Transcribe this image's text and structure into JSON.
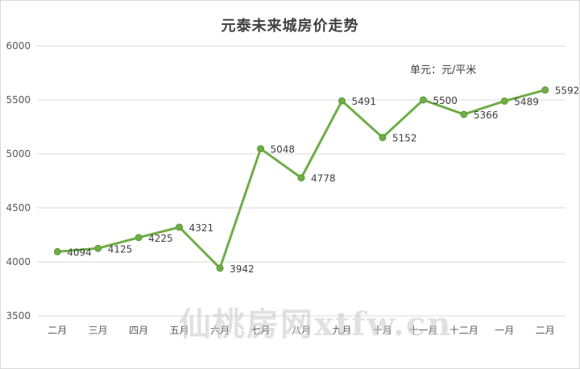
{
  "chart_data": {
    "type": "line",
    "title": "元泰未来城房价走势",
    "unit_note": "单元：元/平米",
    "categories": [
      "二月",
      "三月",
      "四月",
      "五月",
      "六月",
      "七月",
      "八月",
      "九月",
      "十月",
      "十一月",
      "十二月",
      "一月",
      "二月"
    ],
    "series": [
      {
        "values": [
          4094,
          4125,
          4225,
          4321,
          3942,
          5048,
          4778,
          5491,
          5152,
          5500,
          5366,
          5489,
          5592
        ]
      }
    ],
    "ylim": [
      3500,
      6000
    ],
    "yticks": [
      3500,
      4000,
      4500,
      5000,
      5500,
      6000
    ],
    "grid": true,
    "line_color": "#70ad47",
    "marker_color": "#70ad47",
    "data_labels": true
  },
  "watermark": "仙桃房网xtfw.cn"
}
